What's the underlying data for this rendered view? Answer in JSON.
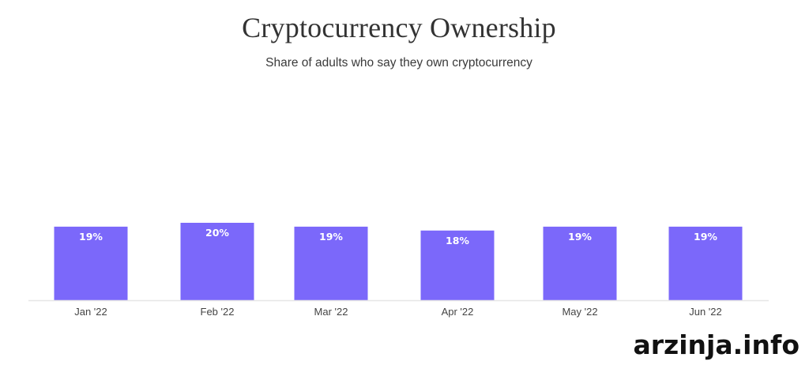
{
  "chart_data": {
    "type": "bar",
    "title": "Cryptocurrency Ownership",
    "subtitle": "Share of adults who say they own cryptocurrency",
    "xlabel": "",
    "ylabel": "",
    "categories": [
      "Jan '22",
      "Feb '22",
      "Mar '22",
      "Apr '22",
      "May '22",
      "Jun '22"
    ],
    "values": [
      19,
      20,
      19,
      18,
      19,
      19
    ],
    "data_labels": [
      "19%",
      "20%",
      "19%",
      "18%",
      "19%",
      "19%"
    ],
    "unit": "%",
    "grid": false,
    "legend": "none",
    "bar_color": "#7B68FA",
    "axis_color": "#E6E6E6"
  },
  "watermark": "arzinja.info"
}
